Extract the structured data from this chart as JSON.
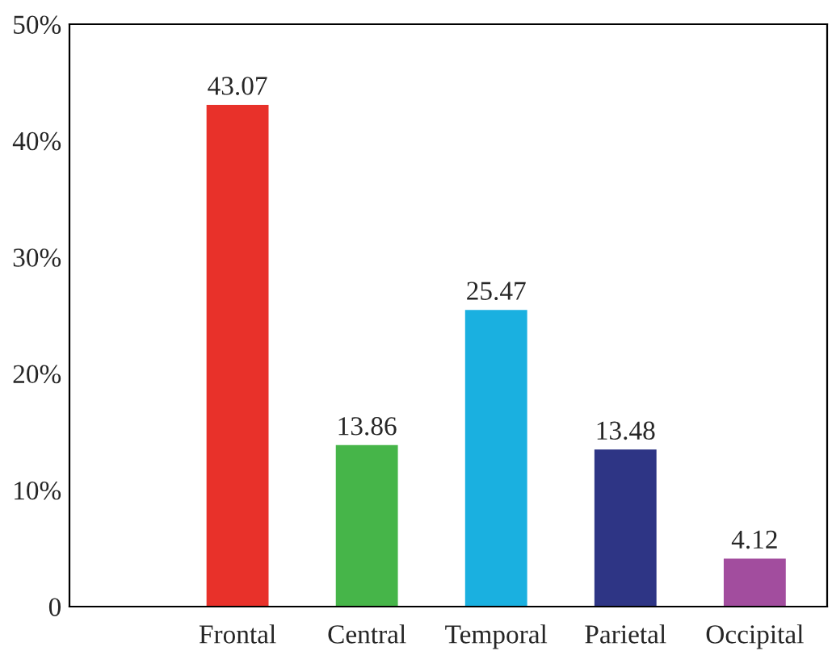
{
  "chart_data": {
    "type": "bar",
    "categories": [
      "Frontal",
      "Central",
      "Temporal",
      "Parietal",
      "Occipital"
    ],
    "values": [
      43.07,
      13.86,
      25.47,
      13.48,
      4.12
    ],
    "colors": [
      "#e8312a",
      "#46b549",
      "#1ab0e0",
      "#2e3585",
      "#a24d9e"
    ],
    "data_labels": true,
    "ylim": [
      0,
      50
    ],
    "yticks": [
      0,
      {
        "value": 10,
        "label": "10%"
      },
      {
        "value": 20,
        "label": "20%"
      },
      {
        "value": 30,
        "label": "30%"
      },
      {
        "value": 40,
        "label": "40%"
      },
      {
        "value": 50,
        "label": "50%"
      }
    ],
    "grid": false,
    "legend": false
  }
}
